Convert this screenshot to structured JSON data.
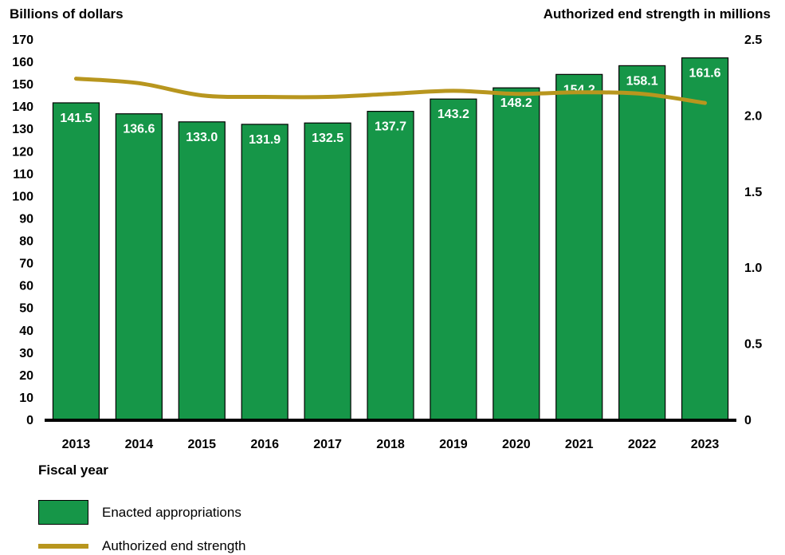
{
  "chart_data": {
    "type": "bar+line",
    "left_axis_title": "Billions of dollars",
    "right_axis_title": "Authorized end strength in millions",
    "x_axis_title": "Fiscal year",
    "categories": [
      "2013",
      "2014",
      "2015",
      "2016",
      "2017",
      "2018",
      "2019",
      "2020",
      "2021",
      "2022",
      "2023"
    ],
    "left_axis": {
      "min": 0,
      "max": 170,
      "ticks": [
        "0",
        "10",
        "20",
        "30",
        "40",
        "50",
        "60",
        "70",
        "80",
        "90",
        "100",
        "110",
        "120",
        "130",
        "140",
        "150",
        "160",
        "170"
      ]
    },
    "right_axis": {
      "min": 0,
      "max": 2.5,
      "ticks": [
        "0",
        "0.5",
        "1.0",
        "1.5",
        "2.0",
        "2.5"
      ]
    },
    "series": [
      {
        "name": "Enacted appropriations",
        "kind": "bar",
        "axis": "left",
        "values": [
          141.5,
          136.6,
          133.0,
          131.9,
          132.5,
          137.7,
          143.2,
          148.2,
          154.2,
          158.1,
          161.6
        ],
        "labels": [
          "141.5",
          "136.6",
          "133.0",
          "131.9",
          "132.5",
          "137.7",
          "143.2",
          "148.2",
          "154.2",
          "158.1",
          "161.6"
        ]
      },
      {
        "name": "Authorized end strength",
        "kind": "line",
        "axis": "right",
        "values": [
          2.24,
          2.21,
          2.13,
          2.12,
          2.12,
          2.14,
          2.16,
          2.14,
          2.15,
          2.14,
          2.08
        ]
      }
    ],
    "colors": {
      "bar": "#169648",
      "line": "#b8961e"
    },
    "legend_placement": "bottom-left",
    "grid": false
  }
}
